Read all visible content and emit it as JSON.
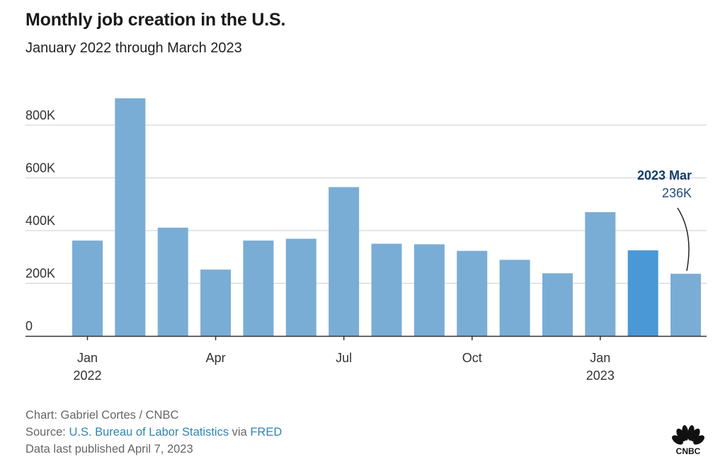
{
  "header": {
    "title": "Monthly job creation in the U.S.",
    "subtitle": "January 2022 through March 2023"
  },
  "chart_data": {
    "type": "bar",
    "title": "Monthly job creation in the U.S.",
    "subtitle": "January 2022 through March 2023",
    "xlabel": "",
    "ylabel": "",
    "ylim": [
      0,
      900000
    ],
    "grid": true,
    "categories": [
      "2022 Jan",
      "2022 Feb",
      "2022 Mar",
      "2022 Apr",
      "2022 May",
      "2022 Jun",
      "2022 Jul",
      "2022 Aug",
      "2022 Sep",
      "2022 Oct",
      "2022 Nov",
      "2022 Dec",
      "2023 Jan",
      "2023 Feb",
      "2023 Mar"
    ],
    "values": [
      362000,
      902000,
      411000,
      252000,
      362000,
      369000,
      565000,
      350000,
      348000,
      323000,
      289000,
      238000,
      470000,
      325000,
      236000
    ],
    "highlight_index": 13,
    "colors": {
      "bar": "#7aadd5",
      "highlight": "#4a98d6",
      "annotation_title": "#143c6b",
      "annotation_value": "#234d7a",
      "gridline": "#d6d6d6",
      "axis": "#333333"
    },
    "y_ticks": [
      {
        "value": 0,
        "label": "0"
      },
      {
        "value": 200000,
        "label": "200K"
      },
      {
        "value": 400000,
        "label": "400K"
      },
      {
        "value": 600000,
        "label": "600K"
      },
      {
        "value": 800000,
        "label": "800K"
      }
    ],
    "x_ticks": [
      {
        "index": 0,
        "label": "Jan",
        "sublabel": "2022"
      },
      {
        "index": 3,
        "label": "Apr",
        "sublabel": ""
      },
      {
        "index": 6,
        "label": "Jul",
        "sublabel": ""
      },
      {
        "index": 9,
        "label": "Oct",
        "sublabel": ""
      },
      {
        "index": 12,
        "label": "Jan",
        "sublabel": "2023"
      }
    ],
    "annotation": {
      "index": 14,
      "title": "2023 Mar",
      "value": "236K"
    }
  },
  "footer": {
    "credit": "Chart: Gabriel Cortes / CNBC",
    "source_prefix": "Source: ",
    "source_link_1": "U.S. Bureau of Labor Statistics",
    "source_via": " via ",
    "source_link_2": "FRED",
    "published": "Data last published April 7, 2023"
  },
  "logo": {
    "icon": "cnbc-peacock-logo",
    "text": "CNBC"
  }
}
